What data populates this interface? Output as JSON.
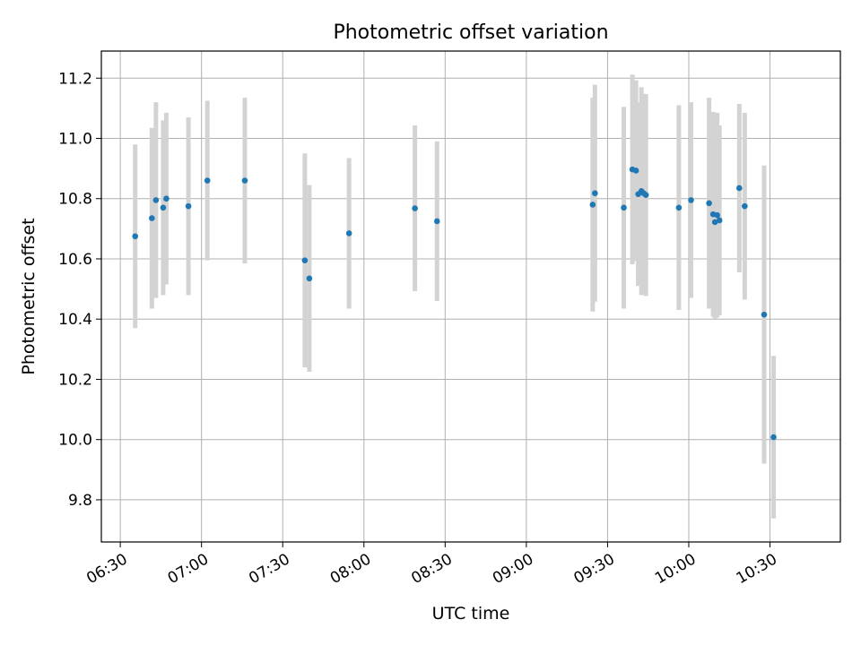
{
  "chart_data": {
    "type": "scatter",
    "title": "Photometric offset variation",
    "xlabel": "UTC time",
    "ylabel": "Photometric offset",
    "x_axis_kind": "time",
    "xlim": [
      "06:23",
      "10:56"
    ],
    "ylim": [
      9.66,
      11.29
    ],
    "x_ticks": [
      "06:30",
      "07:00",
      "07:30",
      "08:00",
      "08:30",
      "09:00",
      "09:30",
      "10:00",
      "10:30"
    ],
    "y_ticks": [
      9.8,
      10.0,
      10.2,
      10.4,
      10.6,
      10.8,
      11.0,
      11.2
    ],
    "grid": true,
    "legend": "none",
    "colors": {
      "point": "#1f77b4",
      "errorbar": "#d3d3d3",
      "grid": "#b0b0b0"
    },
    "points": [
      {
        "x": "06:35:30",
        "y": 10.675,
        "yerr": [
          0.305,
          0.305
        ]
      },
      {
        "x": "06:41:40",
        "y": 10.735,
        "yerr": [
          0.3,
          0.3
        ]
      },
      {
        "x": "06:43:10",
        "y": 10.795,
        "yerr": [
          0.325,
          0.325
        ]
      },
      {
        "x": "06:45:50",
        "y": 10.77,
        "yerr": [
          0.29,
          0.29
        ]
      },
      {
        "x": "06:47:00",
        "y": 10.8,
        "yerr": [
          0.285,
          0.285
        ]
      },
      {
        "x": "06:55:10",
        "y": 10.775,
        "yerr": [
          0.295,
          0.295
        ]
      },
      {
        "x": "07:02:10",
        "y": 10.86,
        "yerr": [
          0.265,
          0.265
        ]
      },
      {
        "x": "07:16:00",
        "y": 10.86,
        "yerr": [
          0.275,
          0.275
        ]
      },
      {
        "x": "07:38:10",
        "y": 10.595,
        "yerr": [
          0.355,
          0.355
        ]
      },
      {
        "x": "07:39:50",
        "y": 10.535,
        "yerr": [
          0.31,
          0.31
        ]
      },
      {
        "x": "07:54:30",
        "y": 10.685,
        "yerr": [
          0.25,
          0.25
        ]
      },
      {
        "x": "08:18:50",
        "y": 10.768,
        "yerr": [
          0.275,
          0.275
        ]
      },
      {
        "x": "08:27:00",
        "y": 10.725,
        "yerr": [
          0.265,
          0.265
        ]
      },
      {
        "x": "09:24:30",
        "y": 10.78,
        "yerr": [
          0.355,
          0.355
        ]
      },
      {
        "x": "09:25:20",
        "y": 10.818,
        "yerr": [
          0.36,
          0.36
        ]
      },
      {
        "x": "09:36:00",
        "y": 10.77,
        "yerr": [
          0.335,
          0.335
        ]
      },
      {
        "x": "09:39:10",
        "y": 10.897,
        "yerr": [
          0.315,
          0.315
        ]
      },
      {
        "x": "09:40:30",
        "y": 10.893,
        "yerr": [
          0.3,
          0.3
        ]
      },
      {
        "x": "09:41:20",
        "y": 10.815,
        "yerr": [
          0.305,
          0.305
        ]
      },
      {
        "x": "09:42:30",
        "y": 10.825,
        "yerr": [
          0.345,
          0.345
        ]
      },
      {
        "x": "09:43:20",
        "y": 10.818,
        "yerr": [
          0.33,
          0.33
        ]
      },
      {
        "x": "09:44:10",
        "y": 10.812,
        "yerr": [
          0.335,
          0.335
        ]
      },
      {
        "x": "09:56:20",
        "y": 10.77,
        "yerr": [
          0.34,
          0.34
        ]
      },
      {
        "x": "10:00:50",
        "y": 10.795,
        "yerr": [
          0.325,
          0.325
        ]
      },
      {
        "x": "10:07:30",
        "y": 10.785,
        "yerr": [
          0.35,
          0.35
        ]
      },
      {
        "x": "10:09:00",
        "y": 10.748,
        "yerr": [
          0.34,
          0.34
        ]
      },
      {
        "x": "10:09:40",
        "y": 10.722,
        "yerr": [
          0.32,
          0.32
        ]
      },
      {
        "x": "10:10:30",
        "y": 10.745,
        "yerr": [
          0.34,
          0.34
        ]
      },
      {
        "x": "10:11:20",
        "y": 10.728,
        "yerr": [
          0.315,
          0.315
        ]
      },
      {
        "x": "10:18:40",
        "y": 10.835,
        "yerr": [
          0.28,
          0.28
        ]
      },
      {
        "x": "10:20:40",
        "y": 10.775,
        "yerr": [
          0.31,
          0.31
        ]
      },
      {
        "x": "10:27:50",
        "y": 10.415,
        "yerr": [
          0.495,
          0.495
        ]
      },
      {
        "x": "10:31:20",
        "y": 10.008,
        "yerr": [
          0.27,
          0.27
        ]
      }
    ]
  }
}
